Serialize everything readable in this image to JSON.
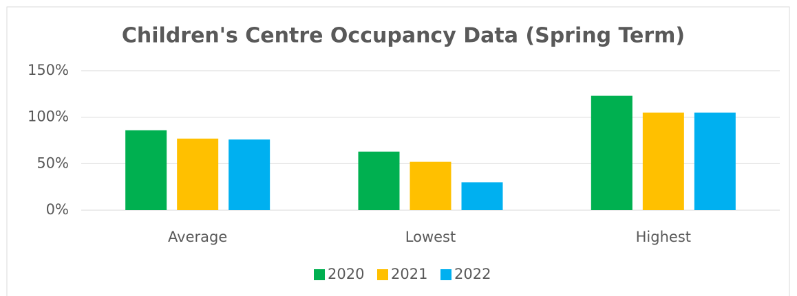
{
  "chart_data": {
    "type": "bar",
    "title": "Children's Centre Occupancy  Data (Spring Term)",
    "categories": [
      "Average",
      "Lowest",
      "Highest"
    ],
    "series": [
      {
        "name": "2020",
        "color": "#00b050",
        "values": [
          86,
          63,
          123
        ]
      },
      {
        "name": "2021",
        "color": "#ffc000",
        "values": [
          77,
          52,
          105
        ]
      },
      {
        "name": "2022",
        "color": "#00b0f0",
        "values": [
          76,
          30,
          105
        ]
      }
    ],
    "ylim": [
      0,
      150
    ],
    "yticks": [
      {
        "value": 0,
        "label": "0%"
      },
      {
        "value": 50,
        "label": "50%"
      },
      {
        "value": 100,
        "label": "100%"
      },
      {
        "value": 150,
        "label": "150%"
      }
    ],
    "grid": true,
    "legend": "bottom"
  }
}
